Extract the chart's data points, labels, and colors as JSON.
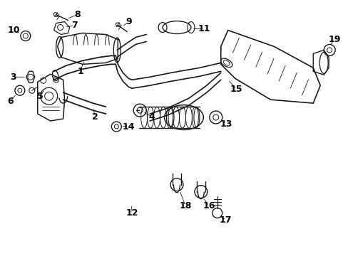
{
  "background_color": "#ffffff",
  "figsize": [
    4.89,
    3.6
  ],
  "dpi": 100,
  "line_color": "#1a1a1a",
  "line_width": 0.8,
  "font_size": 9,
  "label_color": "#000000"
}
